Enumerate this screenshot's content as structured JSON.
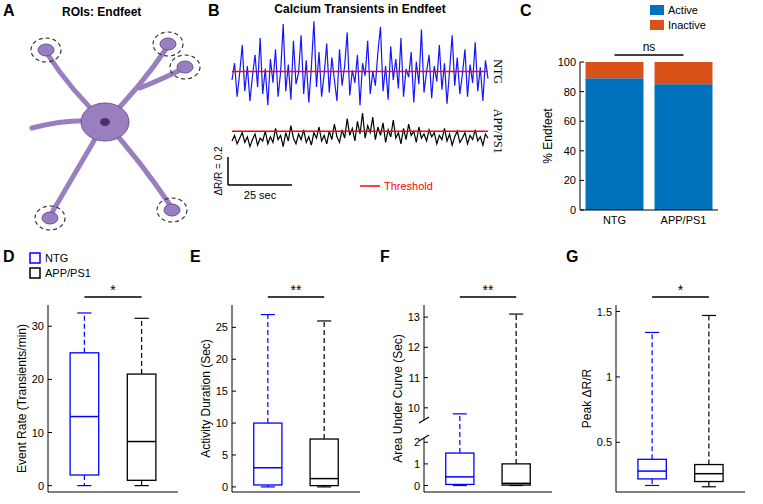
{
  "chart_data": [
    {
      "panel_label": "A",
      "type": "diagram",
      "title": "ROIs: Endfeet"
    },
    {
      "panel_label": "B",
      "type": "line",
      "title": "Calcium Transients in Endfeet",
      "tick_labels": false,
      "xlim": [
        0,
        100
      ],
      "x": [
        0,
        1,
        2,
        3,
        4,
        5,
        6,
        7,
        8,
        9,
        10,
        11,
        12,
        13,
        14,
        15,
        16,
        17,
        18,
        19,
        20,
        21,
        22,
        23,
        24,
        25,
        26,
        27,
        28,
        29,
        30,
        31,
        32,
        33,
        34,
        35,
        36,
        37,
        38,
        39,
        40,
        41,
        42,
        43,
        44,
        45,
        46,
        47,
        48,
        49,
        50,
        51,
        52,
        53,
        54,
        55,
        56,
        57,
        58,
        59,
        60,
        61,
        62,
        63,
        64,
        65,
        66,
        67,
        68,
        69,
        70,
        71,
        72,
        73,
        74,
        75,
        76,
        77,
        78,
        79,
        80,
        81,
        82,
        83,
        84,
        85,
        86,
        87,
        88,
        89,
        90,
        91,
        92,
        93,
        94,
        95,
        96,
        97,
        98,
        99,
        100
      ],
      "series": [
        {
          "name": "NTG",
          "color": "#1515ff",
          "threshold_value": 0.36,
          "values": [
            0.3,
            0.42,
            0.18,
            0.35,
            0.55,
            0.22,
            0.4,
            0.15,
            0.33,
            0.48,
            0.25,
            0.6,
            0.2,
            0.38,
            0.12,
            0.45,
            0.28,
            0.52,
            0.18,
            0.36,
            0.7,
            0.22,
            0.41,
            0.16,
            0.58,
            0.27,
            0.35,
            0.62,
            0.2,
            0.44,
            0.14,
            0.39,
            0.72,
            0.25,
            0.5,
            0.18,
            0.34,
            0.56,
            0.21,
            0.46,
            0.3,
            0.15,
            0.52,
            0.26,
            0.4,
            0.64,
            0.19,
            0.37,
            0.28,
            0.48,
            0.12,
            0.42,
            0.33,
            0.58,
            0.2,
            0.36,
            0.26,
            0.5,
            0.68,
            0.22,
            0.4,
            0.16,
            0.54,
            0.3,
            0.45,
            0.24,
            0.6,
            0.18,
            0.38,
            0.32,
            0.5,
            0.14,
            0.43,
            0.27,
            0.66,
            0.21,
            0.36,
            0.48,
            0.17,
            0.4,
            0.29,
            0.55,
            0.23,
            0.42,
            0.13,
            0.37,
            0.62,
            0.26,
            0.46,
            0.2,
            0.34,
            0.52,
            0.18,
            0.41,
            0.28,
            0.57,
            0.22,
            0.39,
            0.15,
            0.44,
            0.31
          ]
        },
        {
          "name": "APP/PS1",
          "color": "#000000",
          "threshold_value": 0.17,
          "values": [
            0.1,
            0.14,
            0.08,
            0.12,
            0.16,
            0.09,
            0.13,
            0.06,
            0.11,
            0.15,
            0.07,
            0.12,
            0.1,
            0.17,
            0.08,
            0.13,
            0.09,
            0.19,
            0.11,
            0.14,
            0.06,
            0.16,
            0.1,
            0.21,
            0.12,
            0.08,
            0.15,
            0.11,
            0.18,
            0.09,
            0.13,
            0.07,
            0.16,
            0.12,
            0.2,
            0.1,
            0.14,
            0.08,
            0.17,
            0.11,
            0.22,
            0.13,
            0.09,
            0.18,
            0.12,
            0.26,
            0.14,
            0.19,
            0.1,
            0.24,
            0.15,
            0.3,
            0.12,
            0.21,
            0.16,
            0.27,
            0.11,
            0.2,
            0.14,
            0.23,
            0.09,
            0.18,
            0.13,
            0.25,
            0.12,
            0.16,
            0.08,
            0.19,
            0.11,
            0.22,
            0.14,
            0.17,
            0.09,
            0.2,
            0.12,
            0.15,
            0.1,
            0.18,
            0.13,
            0.16,
            0.08,
            0.14,
            0.11,
            0.19,
            0.1,
            0.15,
            0.07,
            0.13,
            0.17,
            0.09,
            0.12,
            0.16,
            0.08,
            0.14,
            0.11,
            0.18,
            0.1,
            0.13,
            0.07,
            0.15,
            0.12
          ]
        }
      ],
      "threshold": {
        "label": "Threshold",
        "color": "#ff0000"
      },
      "scale_bars": {
        "y": 0.2,
        "y_label": "ΔR/R = 0.2",
        "x": 25,
        "x_label": "25 sec"
      }
    },
    {
      "panel_label": "C",
      "type": "bar",
      "stacked": true,
      "legend": "top-right",
      "categories": [
        "NTG",
        "APP/PS1"
      ],
      "y_label": "% Endfeet",
      "series": [
        {
          "name": "Active",
          "color": "#0072bd",
          "values": [
            89,
            85
          ]
        },
        {
          "name": "Inactive",
          "color": "#d95319",
          "values": [
            11,
            15
          ]
        }
      ],
      "ylim": [
        0,
        100
      ],
      "yticks": [
        0,
        20,
        40,
        60,
        80,
        100
      ],
      "annotation": "ns"
    },
    {
      "panel_label": "D",
      "type": "box",
      "legend": "top-left",
      "tick_labels": "y",
      "y_label": "Event Rate (Transients/min)",
      "ylim": [
        -1.2,
        34
      ],
      "yticks": [
        0,
        10,
        20,
        30
      ],
      "annotation": "*",
      "series": [
        {
          "name": "NTG",
          "color": "#0000ff",
          "whisker_low": 0,
          "q1": 2,
          "median": 13,
          "q3": 25,
          "whisker_high": 32.5
        },
        {
          "name": "APP/PS1",
          "color": "#000000",
          "whisker_low": 0,
          "q1": 1,
          "median": 8.3,
          "q3": 21,
          "whisker_high": 31.5
        }
      ]
    },
    {
      "panel_label": "E",
      "type": "box",
      "tick_labels": "y",
      "y_label": "Activity Duration (Sec)",
      "ylim": [
        -0.8,
        28.5
      ],
      "yticks": [
        0,
        5,
        10,
        15,
        20,
        25
      ],
      "annotation": "**",
      "series": [
        {
          "color": "#0000ff",
          "whisker_low": 0,
          "q1": 0.3,
          "median": 3,
          "q3": 10,
          "whisker_high": 27
        },
        {
          "color": "#000000",
          "whisker_low": 0,
          "q1": 0.2,
          "median": 1.3,
          "q3": 7.5,
          "whisker_high": 26
        }
      ]
    },
    {
      "panel_label": "F",
      "type": "box",
      "tick_labels": "y",
      "y_label": "Area Under Curve (Sec)",
      "ylim": [
        -0.3,
        13.4
      ],
      "y_break": [
        2.2,
        9.6
      ],
      "yticks": [
        0,
        1,
        2,
        10,
        11,
        12,
        13
      ],
      "annotation": "**",
      "series": [
        {
          "color": "#0000ff",
          "whisker_low": 0,
          "q1": 0.05,
          "median": 0.4,
          "q3": 1.5,
          "whisker_high": 9.8
        },
        {
          "color": "#000000",
          "whisker_low": 0,
          "q1": 0.02,
          "median": 0.1,
          "q3": 1,
          "whisker_high": 13.1
        }
      ]
    },
    {
      "panel_label": "G",
      "type": "box",
      "tick_labels": "y",
      "y_label": "Peak ΔR/R",
      "ylim": [
        0.12,
        1.55
      ],
      "yticks": [
        0.5,
        1,
        1.5
      ],
      "annotation": "*",
      "series": [
        {
          "color": "#0000ff",
          "whisker_low": 0.17,
          "q1": 0.22,
          "median": 0.28,
          "q3": 0.37,
          "whisker_high": 1.34
        },
        {
          "color": "#000000",
          "whisker_low": 0.16,
          "q1": 0.2,
          "median": 0.26,
          "q3": 0.33,
          "whisker_high": 1.47
        }
      ]
    }
  ]
}
